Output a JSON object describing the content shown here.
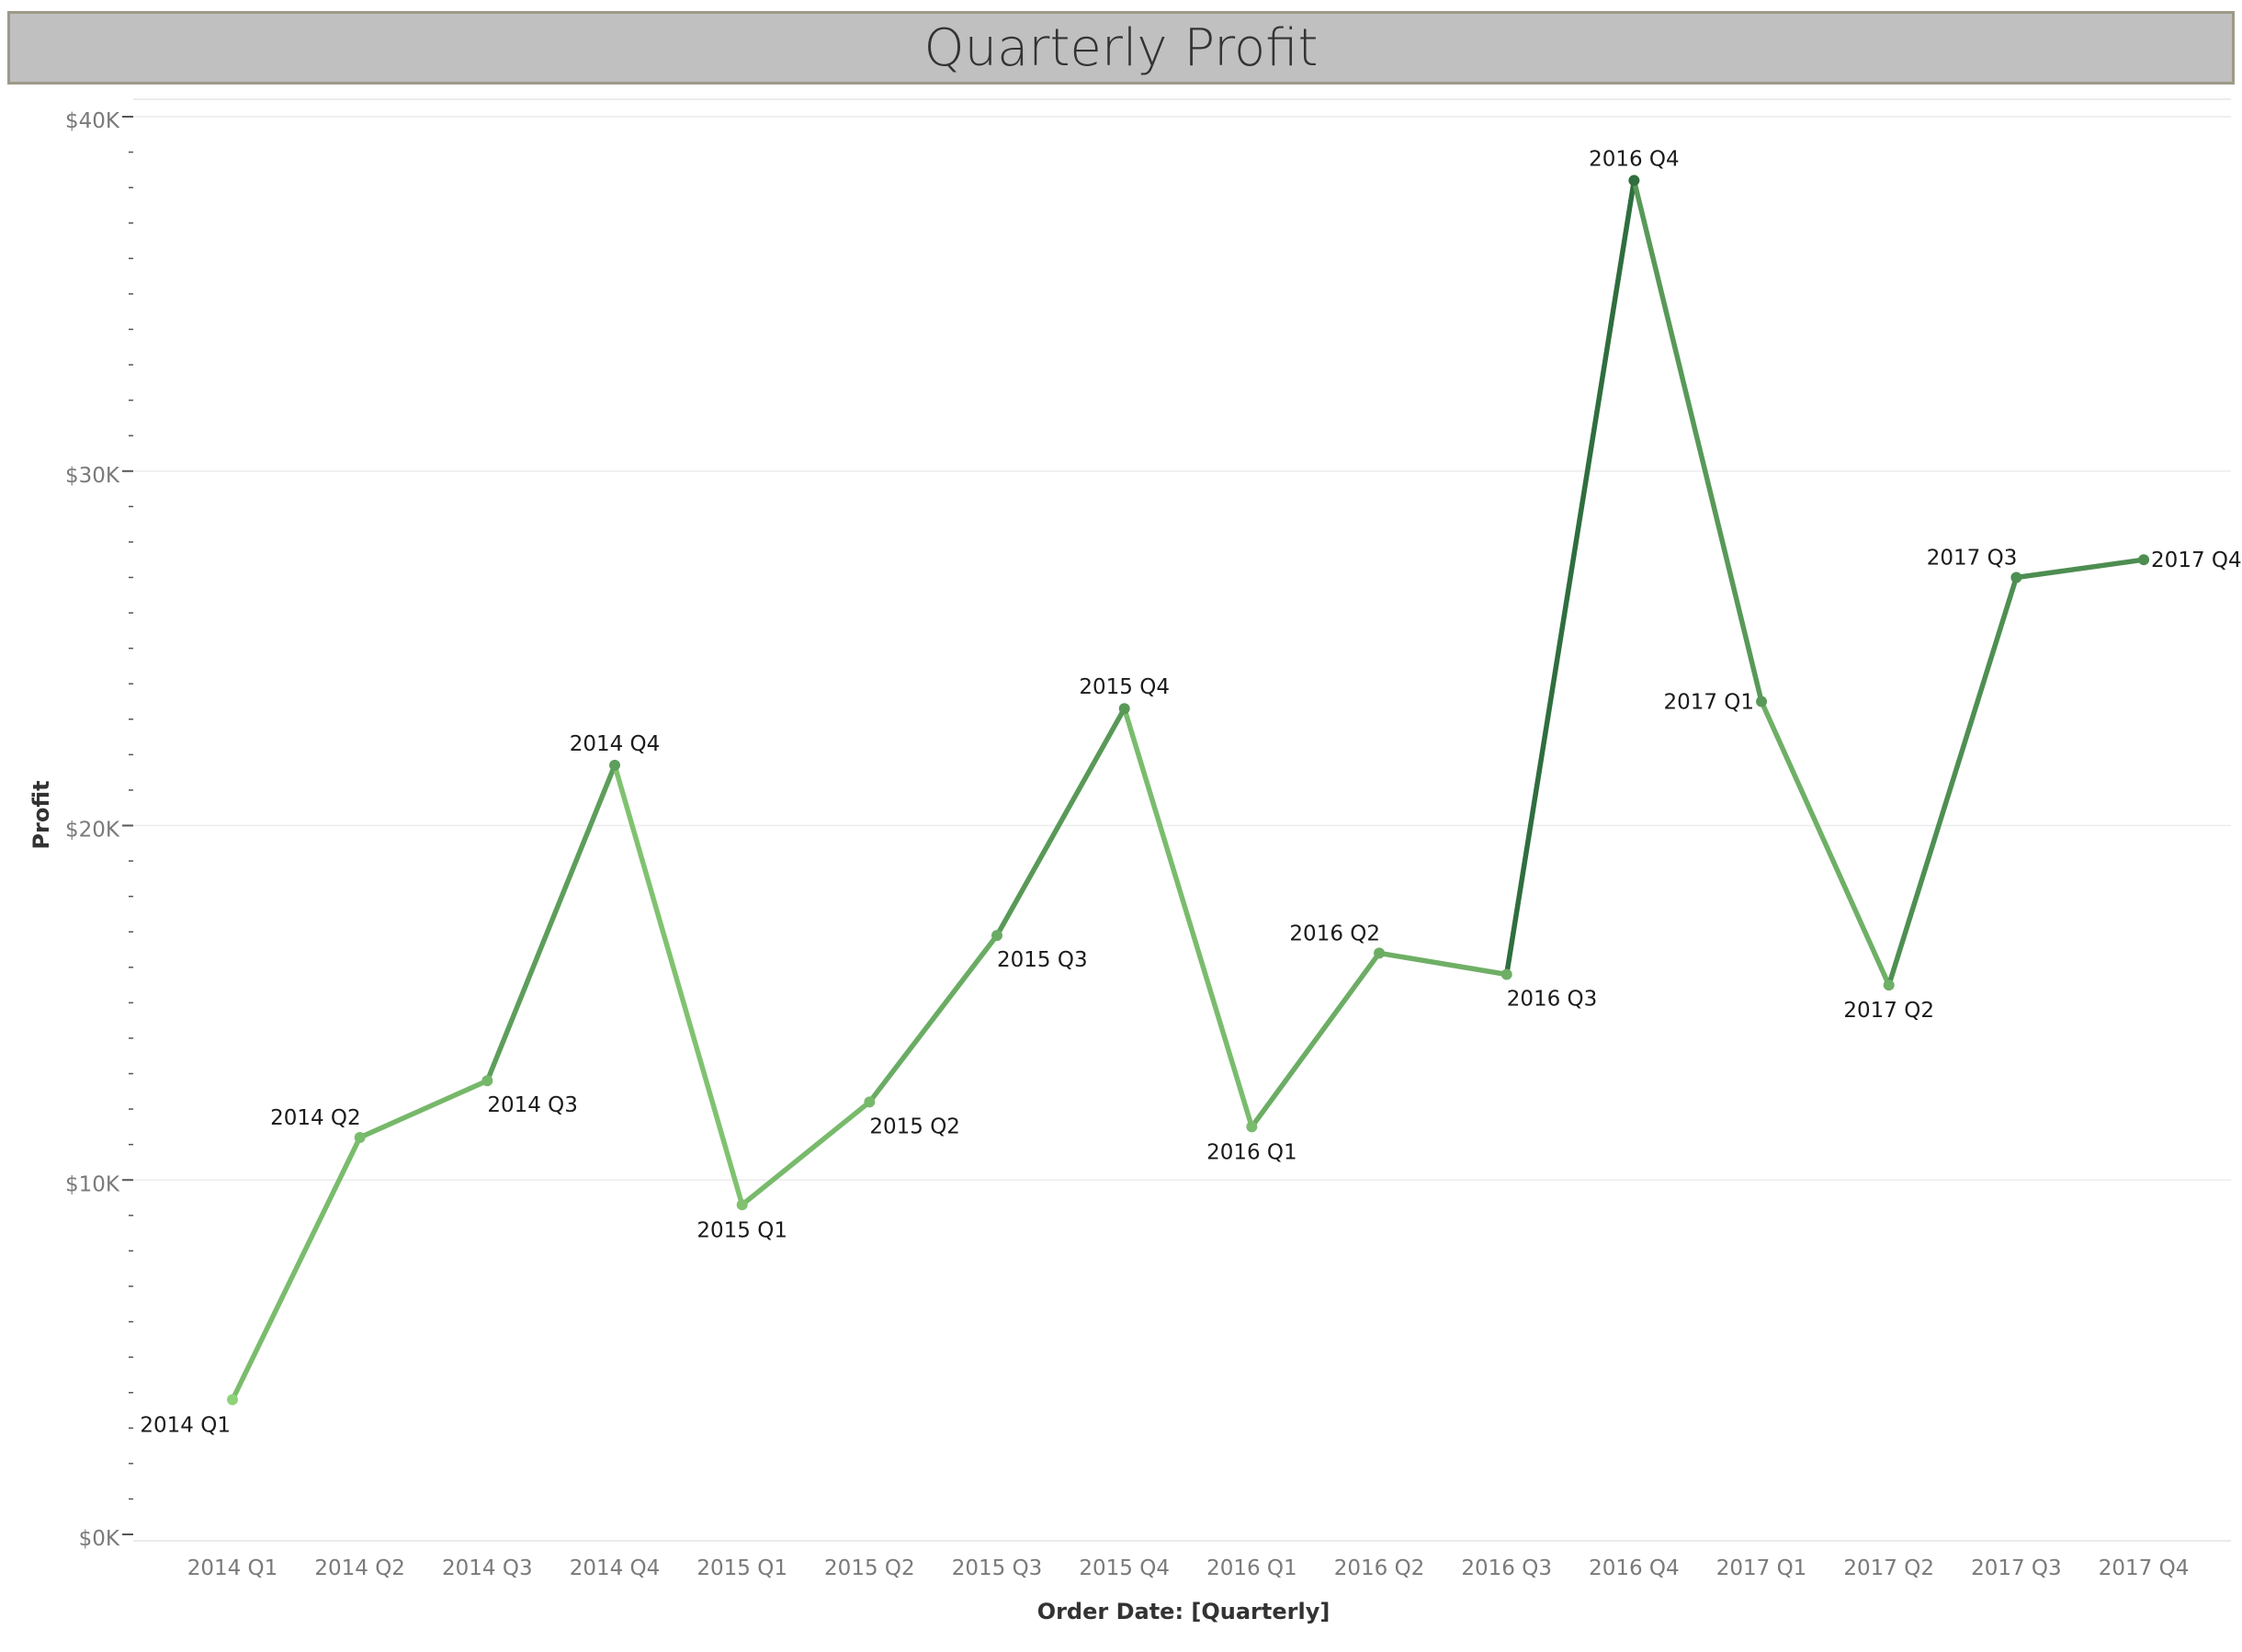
{
  "chart_data": {
    "type": "line",
    "title": "Quarterly Profit",
    "xlabel": "Order Date: [Quarterly]",
    "ylabel": "Profit",
    "categories": [
      "2014 Q1",
      "2014 Q2",
      "2014 Q3",
      "2014 Q4",
      "2015 Q1",
      "2015 Q2",
      "2015 Q3",
      "2015 Q4",
      "2016 Q1",
      "2016 Q2",
      "2016 Q3",
      "2016 Q4",
      "2017 Q1",
      "2017 Q2",
      "2017 Q3",
      "2017 Q4"
    ],
    "values": [
      3800,
      11200,
      12800,
      21700,
      9300,
      12200,
      16900,
      23300,
      11500,
      16400,
      15800,
      38200,
      23500,
      15500,
      27000,
      27500
    ],
    "ylim": [
      0,
      40000
    ],
    "yticks": [
      0,
      10000,
      20000,
      30000,
      40000
    ],
    "ytick_labels": [
      "$0K",
      "$10K",
      "$20K",
      "$30K",
      "$40K"
    ],
    "point_labels": [
      "2014 Q1",
      "2014 Q2",
      "2014 Q3",
      "2014 Q4",
      "2015 Q1",
      "2015 Q2",
      "2015 Q3",
      "2015 Q4",
      "2016 Q1",
      "2016 Q2",
      "2016 Q3",
      "2016 Q4",
      "2017 Q1",
      "2017 Q2",
      "2017 Q3",
      "2017 Q4"
    ],
    "color_scale": [
      "#8fd27a",
      "#2f6e3e"
    ],
    "grid": true,
    "legend": "none"
  }
}
